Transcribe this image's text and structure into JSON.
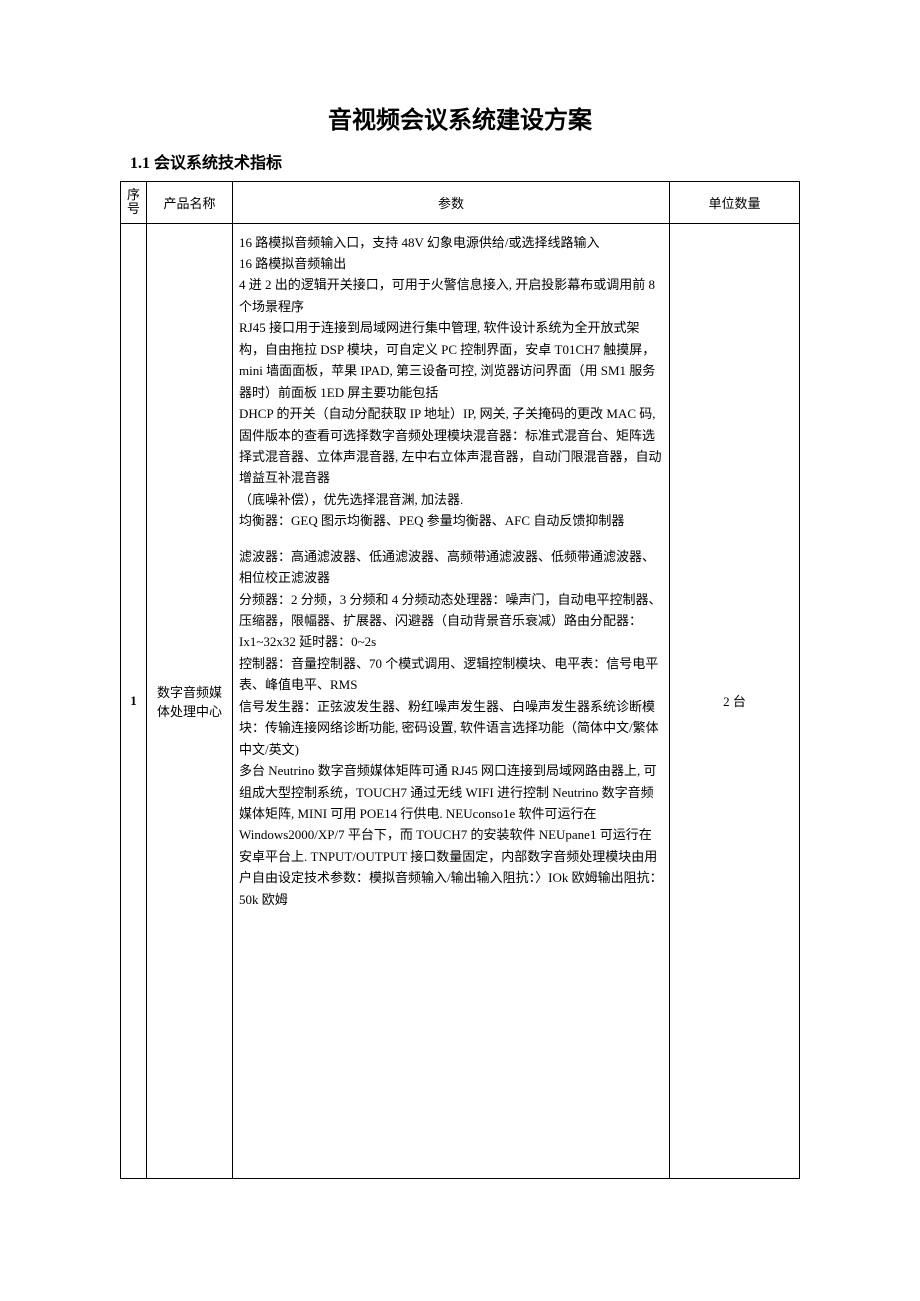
{
  "document": {
    "title": "音视频会议系统建设方案",
    "section_heading": "1.1 会议系统技术指标"
  },
  "table": {
    "headers": {
      "seq": "序号",
      "product_name": "产品名称",
      "params": "参数",
      "unit_qty": "单位数量"
    },
    "rows": [
      {
        "seq": "1",
        "product_name": "数字音频媒体处理中心",
        "params_lines": [
          "16 路模拟音频输入口，支持 48V 幻象电源供给/或选择线路输入",
          "16 路模拟音频输出",
          "4 迸 2 出的逻辑开关接口，可用于火警信息接入, 开启投影幕布或调用前 8 个场景程序",
          "RJ45 接口用于连接到局域网进行集中管理, 软件设计系统为全开放式架构，自由拖拉 DSP 模块，可自定义 PC 控制界面，安卓 T01CH7 触摸屏，mini 墙面面板，苹果 IPAD, 第三设备可控, 浏览器访问界面（用 SM1 服务器时）前面板 1ED 屏主要功能包括",
          "DHCP 的开关（自动分配获取 IP 地址）IP, 网关, 子关掩码的更改 MAC 码, 固件版本的查看可选择数字音频处理模块混音器：标准式混音台、矩阵选择式混音器、立体声混音器, 左中右立体声混音器，自动门限混音器，自动增益互补混音器",
          "（底噪补偿），优先选择混音渊, 加法器.",
          "均衡器：GEQ 图示均衡器、PEQ 参量均衡器、AFC 自动反馈抑制器"
        ],
        "params_lines2": [
          "滤波器：高通滤波器、低通滤波器、高频带通滤波器、低频带通滤波器、相位校正滤波器",
          "分频器：2 分频，3 分频和 4 分频动态处理器：噪声门，自动电平控制器、压缩器，限幅器、扩展器、闪避器（自动背景音乐衰减）路由分配器：Ix1~32x32 延时器：0~2s",
          "控制器：音量控制器、70 个模式调用、逻辑控制模块、电平表：信号电平表、峰值电平、RMS",
          "信号发生器：正弦波发生器、粉红噪声发生器、白噪声发生器系统诊断模块：传输连接网络诊断功能, 密码设置, 软件语言选择功能（简体中文/繁体中文/英文)",
          "多台 Neutrino 数字音频媒体矩阵可通 RJ45 网口连接到局域网路由器上, 可组成大型控制系统，TOUCH7 通过无线 WIFI 进行控制 Neutrino 数字音频媒体矩阵, MINI 可用 POE14 行供电. NEUconso1e 软件可运行在 Windows2000/XP/7 平台下，而 TOUCH7 的安装软件 NEUpane1 可运行在安卓平台上. TNPUT/OUTPUT 接口数量固定，内部数字音频处理模块由用户自由设定技术参数：模拟音频输入/输出输入阻抗：〉IOk 欧姆输出阻抗：50k 欧姆"
        ],
        "unit_qty": "2 台"
      }
    ]
  },
  "style": {
    "font_family": "SimSun",
    "title_fontsize": 24,
    "body_fontsize": 13,
    "border_color": "#000000",
    "background_color": "#ffffff",
    "col_widths": {
      "seq": 26,
      "name": 86,
      "unit": 130
    }
  }
}
